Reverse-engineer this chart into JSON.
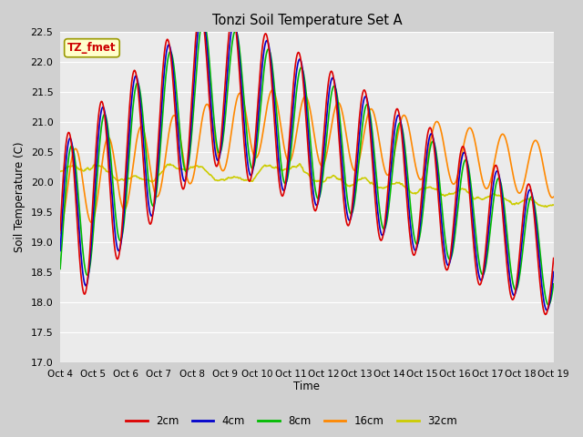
{
  "title": "Tonzi Soil Temperature Set A",
  "ylabel": "Soil Temperature (C)",
  "xlabel": "Time",
  "annotation": "TZ_fmet",
  "annotation_color": "#cc0000",
  "annotation_bg": "#ffffcc",
  "annotation_border": "#999900",
  "ylim": [
    17.0,
    22.5
  ],
  "yticks": [
    17.0,
    17.5,
    18.0,
    18.5,
    19.0,
    19.5,
    20.0,
    20.5,
    21.0,
    21.5,
    22.0,
    22.5
  ],
  "series_colors": {
    "2cm": "#dd0000",
    "4cm": "#0000cc",
    "8cm": "#00bb00",
    "16cm": "#ff8800",
    "32cm": "#cccc00"
  },
  "x_tick_labels": [
    "Oct 4",
    "Oct 5",
    "Oct 6",
    "Oct 7",
    "Oct 8",
    "Oct 9",
    "Oct 10",
    "Oct 11",
    "Oct 12",
    "Oct 13",
    "Oct 14",
    "Oct 15",
    "Oct 16",
    "Oct 17",
    "Oct 18",
    "Oct 19"
  ],
  "fig_bg": "#d0d0d0",
  "plot_bg": "#ebebeb",
  "grid_color": "#ffffff"
}
